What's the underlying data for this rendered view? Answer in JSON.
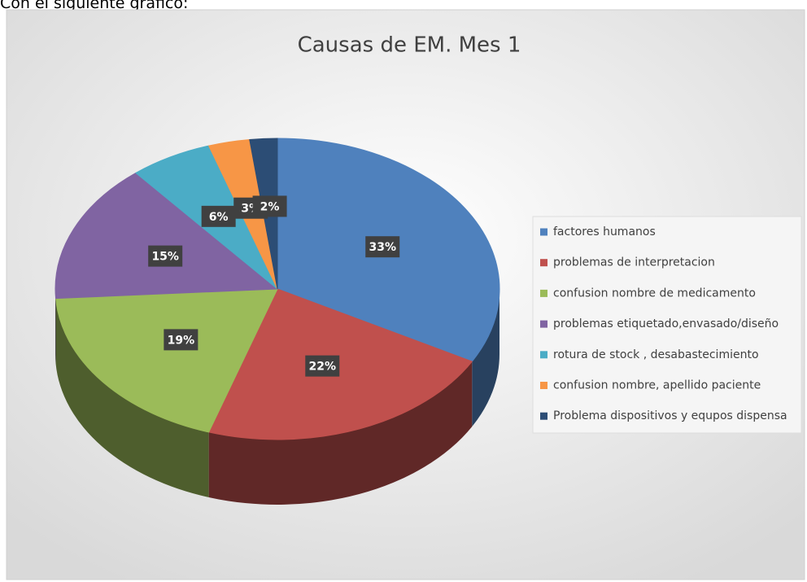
{
  "caption": "Con el siguiente gráfico:",
  "chart_data": {
    "type": "pie",
    "title": "Causas de EM. Mes 1",
    "categories": [
      "factores humanos",
      "problemas de interpretacion",
      "confusion nombre de medicamento",
      "problemas etiquetado,envasado/diseño",
      "rotura de stock , desabastecimiento",
      "confusion nombre, apellido paciente",
      "Problema dispositivos y equpos dispensa"
    ],
    "values": [
      33,
      22,
      19,
      15,
      6,
      3,
      2
    ],
    "value_labels": [
      "33%",
      "22%",
      "19%",
      "15%",
      "6%",
      "3%",
      "2%"
    ],
    "colors": [
      "#4f81bd",
      "#c0504d",
      "#9bbb59",
      "#8064a2",
      "#4bacc6",
      "#f79646",
      "#2c4d75"
    ],
    "legend": "right"
  }
}
